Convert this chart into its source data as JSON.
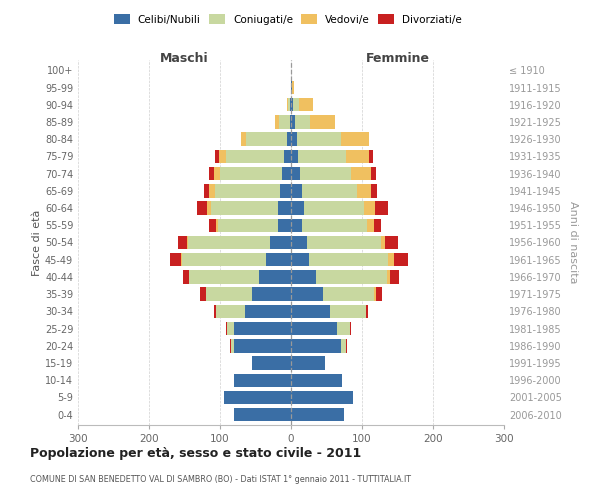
{
  "age_groups": [
    "0-4",
    "5-9",
    "10-14",
    "15-19",
    "20-24",
    "25-29",
    "30-34",
    "35-39",
    "40-44",
    "45-49",
    "50-54",
    "55-59",
    "60-64",
    "65-69",
    "70-74",
    "75-79",
    "80-84",
    "85-89",
    "90-94",
    "95-99",
    "100+"
  ],
  "birth_years": [
    "2006-2010",
    "2001-2005",
    "1996-2000",
    "1991-1995",
    "1986-1990",
    "1981-1985",
    "1976-1980",
    "1971-1975",
    "1966-1970",
    "1961-1965",
    "1956-1960",
    "1951-1955",
    "1946-1950",
    "1941-1945",
    "1936-1940",
    "1931-1935",
    "1926-1930",
    "1921-1925",
    "1916-1920",
    "1911-1915",
    "≤ 1910"
  ],
  "male": {
    "celibe": [
      80,
      95,
      80,
      55,
      80,
      80,
      65,
      55,
      45,
      35,
      30,
      18,
      18,
      15,
      12,
      10,
      5,
      2,
      1,
      0,
      0
    ],
    "coniugato": [
      0,
      0,
      0,
      0,
      5,
      10,
      40,
      65,
      98,
      118,
      115,
      85,
      95,
      92,
      88,
      82,
      58,
      15,
      3,
      0,
      0
    ],
    "vedovo": [
      0,
      0,
      0,
      0,
      0,
      0,
      0,
      0,
      1,
      2,
      2,
      3,
      5,
      8,
      8,
      10,
      8,
      5,
      2,
      0,
      0
    ],
    "divorziato": [
      0,
      0,
      0,
      0,
      1,
      2,
      3,
      8,
      8,
      15,
      12,
      10,
      15,
      8,
      7,
      5,
      0,
      0,
      0,
      0,
      0
    ]
  },
  "female": {
    "nubile": [
      75,
      88,
      72,
      48,
      70,
      65,
      55,
      45,
      35,
      25,
      22,
      15,
      18,
      15,
      12,
      10,
      8,
      5,
      3,
      1,
      0
    ],
    "coniugata": [
      0,
      0,
      0,
      0,
      8,
      18,
      50,
      72,
      100,
      112,
      105,
      92,
      85,
      78,
      72,
      68,
      62,
      22,
      8,
      1,
      0
    ],
    "vedova": [
      0,
      0,
      0,
      0,
      0,
      0,
      1,
      3,
      5,
      8,
      6,
      10,
      15,
      20,
      28,
      32,
      40,
      35,
      20,
      2,
      0
    ],
    "divorziata": [
      0,
      0,
      0,
      0,
      1,
      2,
      3,
      8,
      12,
      20,
      18,
      10,
      18,
      8,
      8,
      5,
      0,
      0,
      0,
      0,
      0
    ]
  },
  "colors": {
    "celibe": "#3A6EA5",
    "coniugato": "#C8D8A0",
    "vedovo": "#F0C060",
    "divorziato": "#C82020"
  },
  "legend_labels": [
    "Celibi/Nubili",
    "Coniugati/e",
    "Vedovi/e",
    "Divorziati/e"
  ],
  "title": "Popolazione per età, sesso e stato civile - 2011",
  "subtitle": "COMUNE DI SAN BENEDETTO VAL DI SAMBRO (BO) - Dati ISTAT 1° gennaio 2011 - TUTTITALIA.IT",
  "maschi_label": "Maschi",
  "femmine_label": "Femmine",
  "ylabel_left": "Fasce di età",
  "ylabel_right": "Anni di nascita",
  "xlim": 300,
  "bg_color": "#ffffff",
  "grid_color": "#d0d0d0"
}
